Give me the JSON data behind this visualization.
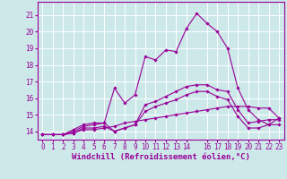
{
  "background_color": "#cce8e8",
  "grid_color": "#ffffff",
  "line_color": "#990099",
  "xlabel": "Windchill (Refroidissement éolien,°C)",
  "xlabel_fontsize": 6.5,
  "tick_fontsize": 5.5,
  "xlim": [
    -0.5,
    23.5
  ],
  "ylim": [
    13.5,
    21.8
  ],
  "yticks": [
    14,
    15,
    16,
    17,
    18,
    19,
    20,
    21
  ],
  "xticks": [
    0,
    1,
    2,
    3,
    4,
    5,
    6,
    7,
    8,
    9,
    10,
    11,
    12,
    13,
    14,
    16,
    17,
    18,
    19,
    20,
    21,
    22,
    23
  ],
  "lines": [
    {
      "x": [
        0,
        1,
        2,
        3,
        4,
        5,
        6,
        7,
        8,
        9,
        10,
        11,
        12,
        13,
        14,
        15,
        16,
        17,
        18,
        19,
        20,
        21,
        22,
        23
      ],
      "y": [
        13.8,
        13.8,
        13.8,
        13.9,
        14.1,
        14.1,
        14.2,
        14.3,
        14.5,
        14.6,
        14.7,
        14.8,
        14.9,
        15.0,
        15.1,
        15.2,
        15.3,
        15.4,
        15.5,
        15.5,
        15.5,
        15.4,
        15.4,
        14.8
      ]
    },
    {
      "x": [
        0,
        1,
        2,
        3,
        4,
        5,
        6,
        7,
        8,
        9,
        10,
        11,
        12,
        13,
        14,
        15,
        16,
        17,
        18,
        19,
        20,
        21,
        22,
        23
      ],
      "y": [
        13.8,
        13.8,
        13.8,
        13.9,
        14.2,
        14.2,
        14.3,
        14.0,
        14.2,
        14.4,
        15.6,
        15.8,
        16.1,
        16.4,
        16.7,
        16.8,
        16.8,
        16.5,
        16.4,
        15.3,
        14.5,
        14.6,
        14.7,
        14.7
      ]
    },
    {
      "x": [
        0,
        1,
        2,
        3,
        4,
        5,
        6,
        7,
        8,
        9,
        10,
        11,
        12,
        13,
        14,
        15,
        16,
        17,
        18,
        19,
        20,
        21,
        22,
        23
      ],
      "y": [
        13.8,
        13.8,
        13.8,
        14.0,
        14.3,
        14.4,
        14.5,
        16.6,
        15.7,
        16.2,
        18.5,
        18.3,
        18.9,
        18.8,
        20.2,
        21.1,
        20.5,
        20.0,
        19.0,
        16.6,
        15.3,
        14.7,
        14.4,
        14.8
      ]
    },
    {
      "x": [
        0,
        1,
        2,
        3,
        4,
        5,
        6,
        7,
        8,
        9,
        10,
        11,
        12,
        13,
        14,
        15,
        16,
        17,
        18,
        19,
        20,
        21,
        22,
        23
      ],
      "y": [
        13.8,
        13.8,
        13.8,
        14.1,
        14.4,
        14.5,
        14.5,
        14.0,
        14.2,
        14.4,
        15.2,
        15.5,
        15.7,
        15.9,
        16.2,
        16.4,
        16.4,
        16.1,
        15.9,
        14.9,
        14.2,
        14.2,
        14.4,
        14.4
      ]
    }
  ]
}
